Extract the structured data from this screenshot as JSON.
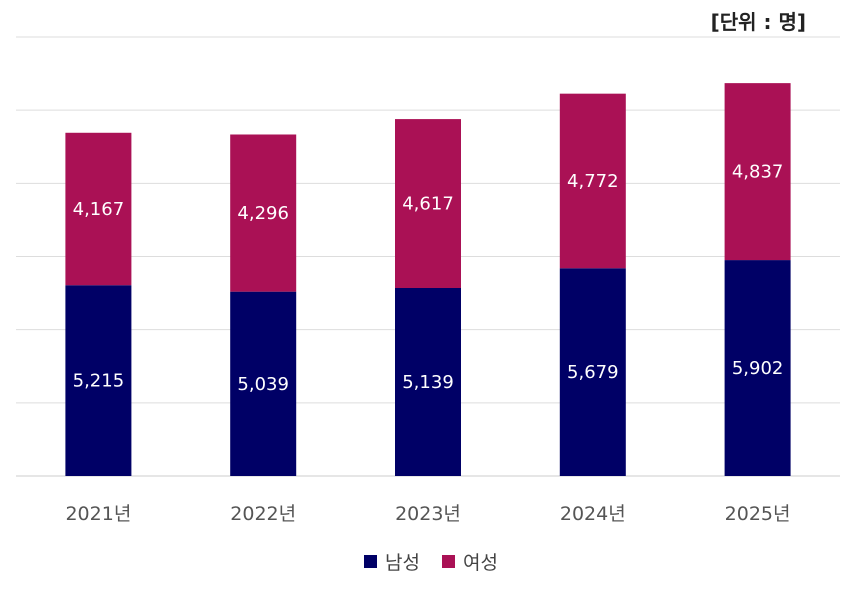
{
  "unit_label": "[단위 : 명]",
  "colors": {
    "male": "#000066",
    "female": "#AA1155",
    "grid": "#DDDDDD"
  },
  "chart_data": {
    "type": "bar",
    "stacked": true,
    "categories": [
      "2021년",
      "2022년",
      "2023년",
      "2024년",
      "2025년"
    ],
    "series": [
      {
        "name": "남성",
        "values": [
          5215,
          5039,
          5139,
          5679,
          5902
        ]
      },
      {
        "name": "여성",
        "values": [
          4167,
          4296,
          4617,
          4772,
          4837
        ]
      }
    ],
    "ylim": [
      0,
      12000
    ],
    "grid": true,
    "legend": "bottom"
  }
}
